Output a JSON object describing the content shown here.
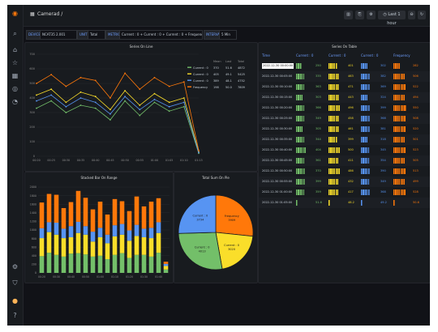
{
  "header": {
    "title": "Camerad /",
    "time_range": "Last 1 hour"
  },
  "variables": [
    {
      "label": "DEVICE",
      "value": "NCAT35 2.001"
    },
    {
      "label": "UNIT",
      "value": "Total"
    },
    {
      "label": "METRIC",
      "value": "Current : 0 + Current : 0 + Current : 0 + Frequency"
    },
    {
      "label": "INTERVAL",
      "value": "5 Min"
    }
  ],
  "line_panel": {
    "title": "Series On Line",
    "legend_headers": [
      "Mean",
      "Last",
      "Total"
    ],
    "legend": [
      {
        "name": "Current : 0",
        "mean": "370",
        "last": "51.6",
        "total": "4872",
        "color": "#73bf69"
      },
      {
        "name": "Current : 0",
        "mean": "405",
        "last": "49.1",
        "total": "5425",
        "color": "#fade2a"
      },
      {
        "name": "Current : 0",
        "mean": "389",
        "last": "48.1",
        "total": "4752",
        "color": "#5794f2"
      },
      {
        "name": "Frequency",
        "mean": "198",
        "last": "50.0",
        "total": "7809",
        "color": "#ff780a"
      }
    ]
  },
  "chart_data": [
    {
      "type": "line",
      "title": "Series On Line",
      "x": [
        "00:20",
        "00:25",
        "00:30",
        "00:35",
        "00:40",
        "00:45",
        "00:50",
        "00:55",
        "01:00",
        "01:05",
        "01:10",
        "01:15"
      ],
      "ylim": [
        0,
        700
      ],
      "yticks": [
        "0",
        "100",
        "200",
        "300",
        "400",
        "500",
        "600",
        "700"
      ],
      "series": [
        {
          "name": "Current : 0",
          "color": "#73bf69",
          "values": [
            330,
            380,
            300,
            350,
            330,
            250,
            380,
            280,
            370,
            310,
            340,
            20
          ]
        },
        {
          "name": "Current : 0",
          "color": "#fade2a",
          "values": [
            420,
            460,
            370,
            440,
            410,
            320,
            450,
            350,
            430,
            370,
            400,
            30
          ]
        },
        {
          "name": "Current : 0",
          "color": "#5794f2",
          "values": [
            380,
            420,
            340,
            400,
            370,
            290,
            410,
            320,
            390,
            340,
            370,
            25
          ]
        },
        {
          "name": "Frequency",
          "color": "#ff780a",
          "values": [
            500,
            560,
            480,
            540,
            520,
            400,
            570,
            460,
            540,
            480,
            510,
            40
          ]
        }
      ]
    },
    {
      "type": "bar",
      "title": "Stacked Bar On Range",
      "categories": [
        "00:20",
        "00:25",
        "00:30",
        "00:35",
        "00:40",
        "00:45",
        "00:50",
        "00:55",
        "01:00",
        "01:05",
        "01:10",
        "01:15",
        "01:20",
        "01:25",
        "01:30",
        "01:35",
        "01:40",
        "01:45"
      ],
      "ylim": [
        0,
        2000
      ],
      "yticks": [
        "0",
        "200",
        "400",
        "600",
        "800",
        "1000",
        "1200",
        "1400",
        "1600",
        "1800",
        "2000"
      ],
      "stacked": true,
      "series": [
        {
          "name": "Current : 0",
          "color": "#73bf69",
          "values": [
            390,
            470,
            420,
            380,
            450,
            460,
            430,
            380,
            400,
            320,
            420,
            460,
            350,
            420,
            420,
            380,
            470,
            80
          ]
        },
        {
          "name": "Current : 0",
          "color": "#fade2a",
          "values": [
            420,
            480,
            470,
            430,
            380,
            470,
            460,
            350,
            430,
            370,
            430,
            430,
            400,
            440,
            410,
            430,
            460,
            80
          ]
        },
        {
          "name": "Current : 0",
          "color": "#5794f2",
          "values": [
            230,
            230,
            280,
            220,
            260,
            260,
            200,
            230,
            220,
            200,
            260,
            250,
            240,
            260,
            200,
            240,
            250,
            50
          ]
        },
        {
          "name": "Frequency",
          "color": "#ff780a",
          "values": [
            600,
            660,
            650,
            480,
            560,
            720,
            660,
            520,
            610,
            470,
            610,
            530,
            450,
            660,
            520,
            610,
            560,
            50
          ]
        }
      ]
    },
    {
      "type": "pie",
      "title": "Total Sum On Pie",
      "slices": [
        {
          "name": "Frequency",
          "value": 3909,
          "value_label": "3909",
          "color": "#ff780a"
        },
        {
          "name": "Current : 0",
          "value": 3020,
          "value_label": "3020",
          "color": "#fade2a"
        },
        {
          "name": "Current : 0",
          "value": 4013,
          "value_label": "4013",
          "color": "#73bf69"
        },
        {
          "name": "Current : 0",
          "value": 3734,
          "value_label": "3734",
          "color": "#5794f2"
        }
      ]
    }
  ],
  "table_panel": {
    "title": "Series On Table",
    "columns": [
      "Time",
      "Current : 0",
      "Current : 0",
      "Current : 0",
      "Frequency"
    ],
    "max": 700,
    "rows": [
      {
        "time": "2022-12-30 00:00:00",
        "v": [
          250,
          401,
          302,
          282
        ],
        "selected": true
      },
      {
        "time": "2022-12-30 00:05:00",
        "v": [
          335,
          463,
          382,
          506
        ],
        "selected": false
      },
      {
        "time": "2022-12-30 00:10:00",
        "v": [
          363,
          471,
          369,
          522
        ],
        "selected": false
      },
      {
        "time": "2022-12-30 00:15:00",
        "v": [
          303,
          443,
          324,
          494
        ],
        "selected": false
      },
      {
        "time": "2022-12-30 00:20:00",
        "v": [
          366,
          496,
          399,
          550
        ],
        "selected": false
      },
      {
        "time": "2022-12-30 00:25:00",
        "v": [
          349,
          458,
          368,
          508
        ],
        "selected": false
      },
      {
        "time": "2022-12-30 00:30:00",
        "v": [
          305,
          461,
          381,
          520
        ],
        "selected": false
      },
      {
        "time": "2022-12-30 00:35:00",
        "v": [
          344,
          399,
          318,
          501
        ],
        "selected": false
      },
      {
        "time": "2022-12-30 00:40:00",
        "v": [
          404,
          500,
          345,
          523
        ],
        "selected": false
      },
      {
        "time": "2022-12-30 00:45:00",
        "v": [
          361,
          411,
          354,
          505
        ],
        "selected": false
      },
      {
        "time": "2022-12-30 00:50:00",
        "v": [
          370,
          486,
          390,
          513
        ],
        "selected": false
      },
      {
        "time": "2022-12-30 00:55:00",
        "v": [
          399,
          432,
          349,
          499
        ],
        "selected": false
      },
      {
        "time": "2022-12-30 01:00:00",
        "v": [
          359,
          417,
          368,
          528
        ],
        "selected": false
      },
      {
        "time": "2022-12-30 01:05:00",
        "v": [
          51.6,
          48.2,
          49.2,
          50.6
        ],
        "selected": false
      }
    ]
  }
}
